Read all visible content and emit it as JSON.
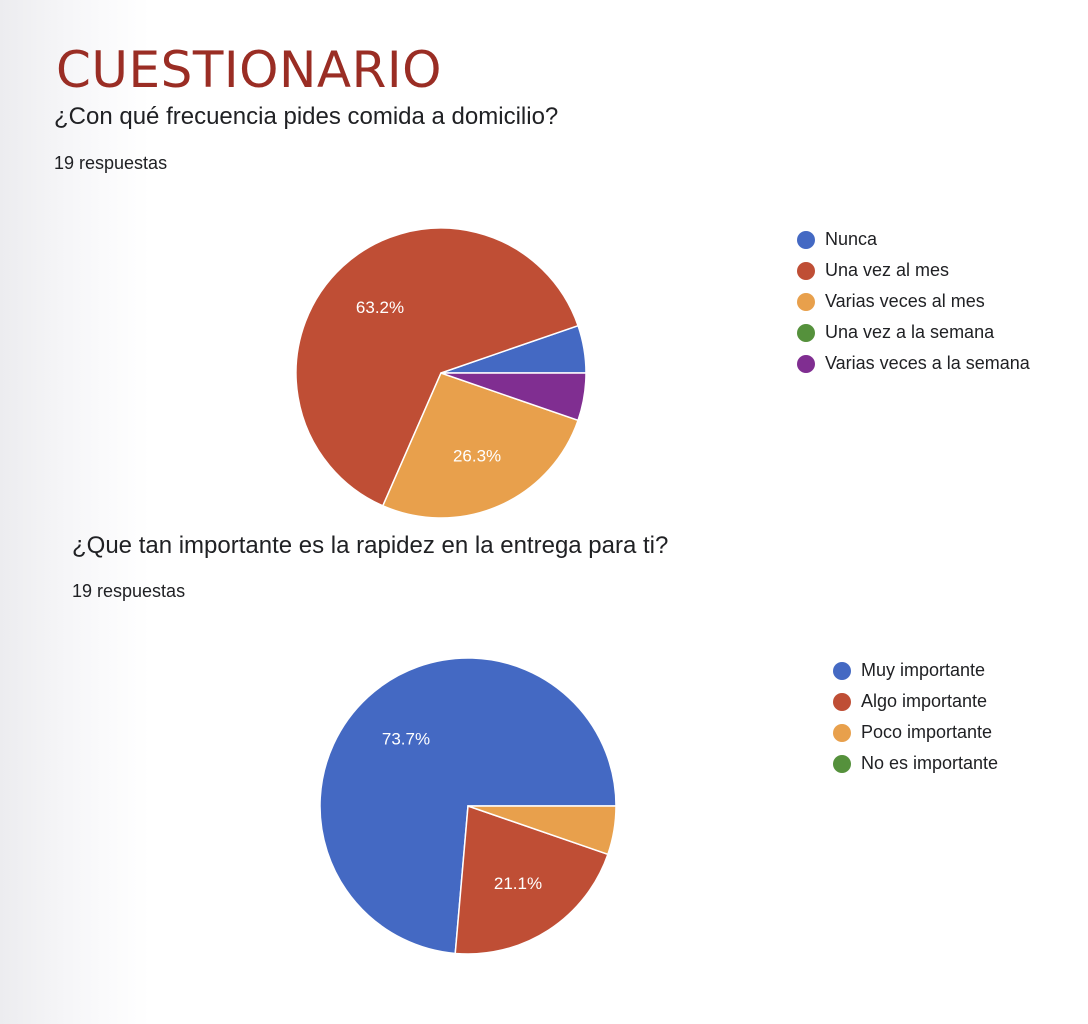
{
  "page": {
    "title": "CUESTIONARIO"
  },
  "chart_data": [
    {
      "type": "pie",
      "title": "¿Con qué frecuencia pides comida a domicilio?",
      "subtitle": "19 respuestas",
      "legend": "right",
      "categories": [
        "Nunca",
        "Una vez al mes",
        "Varias veces al mes",
        "Una vez a la semana",
        "Varias veces a la semana"
      ],
      "values": [
        5.3,
        63.2,
        26.3,
        0,
        5.3
      ],
      "colors": [
        "#4469c3",
        "#bf4e35",
        "#e8a04c",
        "#55913c",
        "#802e91"
      ],
      "data_labels": [
        "",
        "63.2%",
        "26.3%",
        "",
        ""
      ]
    },
    {
      "type": "pie",
      "title": "¿Que tan importante es la rapidez en la entrega para ti?",
      "subtitle": "19 respuestas",
      "legend": "right",
      "categories": [
        "Muy importante",
        "Algo importante",
        "Poco importante",
        "No es importante"
      ],
      "values": [
        73.7,
        21.1,
        5.3,
        0
      ],
      "colors": [
        "#4469c3",
        "#bf4e35",
        "#e8a04c",
        "#55913c"
      ],
      "data_labels": [
        "73.7%",
        "21.1%",
        "",
        ""
      ]
    }
  ]
}
